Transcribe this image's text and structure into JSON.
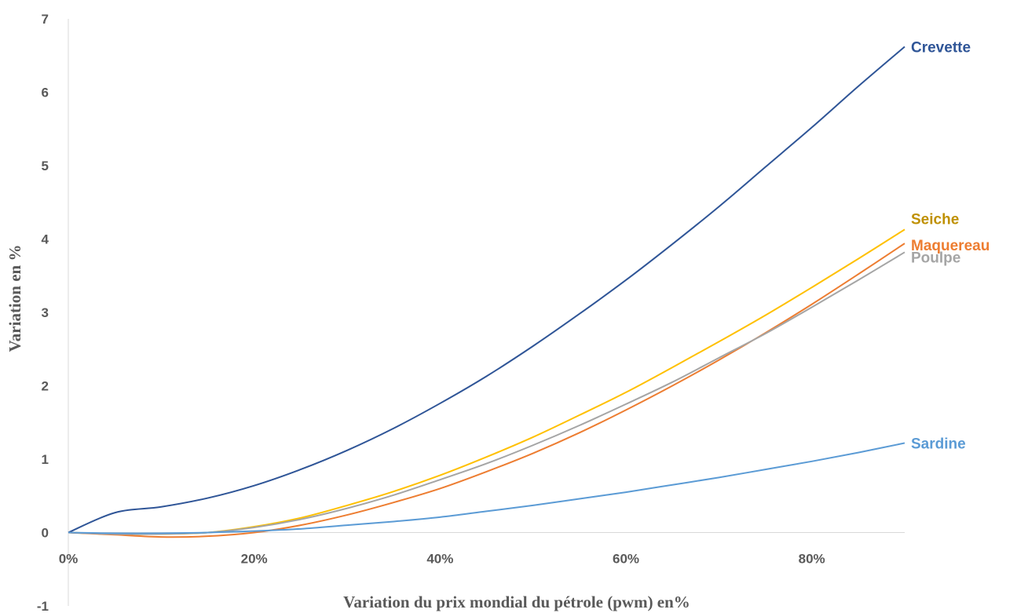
{
  "chart_data": {
    "type": "line",
    "title": "",
    "xlabel": "Variation du prix mondial du pétrole (pwm) en%",
    "ylabel": "Variation en %",
    "xlim": [
      0,
      90
    ],
    "ylim": [
      -1,
      7
    ],
    "x_ticks": [
      0,
      20,
      40,
      60,
      80
    ],
    "x_tick_labels": [
      "0%",
      "20%",
      "40%",
      "60%",
      "80%"
    ],
    "y_ticks": [
      -1,
      0,
      1,
      2,
      3,
      4,
      5,
      6,
      7
    ],
    "y_tick_labels": [
      "-1",
      "0",
      "1",
      "2",
      "3",
      "4",
      "5",
      "6",
      "7"
    ],
    "grid": false,
    "legend": "inline labels at line ends",
    "x": [
      0,
      5,
      10,
      15,
      20,
      25,
      30,
      35,
      40,
      45,
      50,
      55,
      60,
      65,
      70,
      75,
      80,
      85,
      90
    ],
    "series": [
      {
        "name": "Crevette",
        "color": "#2f5597",
        "label_color": "#2f5597",
        "values": [
          0,
          0.27,
          0.35,
          0.47,
          0.64,
          0.86,
          1.12,
          1.42,
          1.76,
          2.13,
          2.54,
          2.98,
          3.44,
          3.93,
          4.44,
          4.98,
          5.52,
          6.08,
          6.62
        ]
      },
      {
        "name": "Seiche",
        "color": "#ffc000",
        "label_color": "#bf9000",
        "values": [
          0,
          -0.02,
          -0.02,
          0,
          0.08,
          0.2,
          0.37,
          0.56,
          0.78,
          1.03,
          1.3,
          1.6,
          1.91,
          2.25,
          2.6,
          2.96,
          3.34,
          3.73,
          4.13
        ]
      },
      {
        "name": "Maquereau",
        "color": "#ed7d31",
        "label_color": "#ed7d31",
        "values": [
          0,
          -0.03,
          -0.06,
          -0.05,
          0,
          0.1,
          0.24,
          0.41,
          0.6,
          0.83,
          1.08,
          1.36,
          1.67,
          2,
          2.35,
          2.72,
          3.11,
          3.52,
          3.94
        ]
      },
      {
        "name": "Poulpe",
        "color": "#a5a5a5",
        "label_color": "#a5a5a5",
        "values": [
          0,
          -0.02,
          -0.02,
          0,
          0.07,
          0.18,
          0.33,
          0.51,
          0.72,
          0.94,
          1.19,
          1.46,
          1.75,
          2.05,
          2.38,
          2.71,
          3.07,
          3.44,
          3.82
        ]
      },
      {
        "name": "Sardine",
        "color": "#5b9bd5",
        "label_color": "#5b9bd5",
        "values": [
          0,
          -0.01,
          -0.01,
          0,
          0.02,
          0.05,
          0.1,
          0.15,
          0.21,
          0.29,
          0.37,
          0.46,
          0.55,
          0.65,
          0.75,
          0.86,
          0.97,
          1.09,
          1.22
        ]
      }
    ]
  }
}
